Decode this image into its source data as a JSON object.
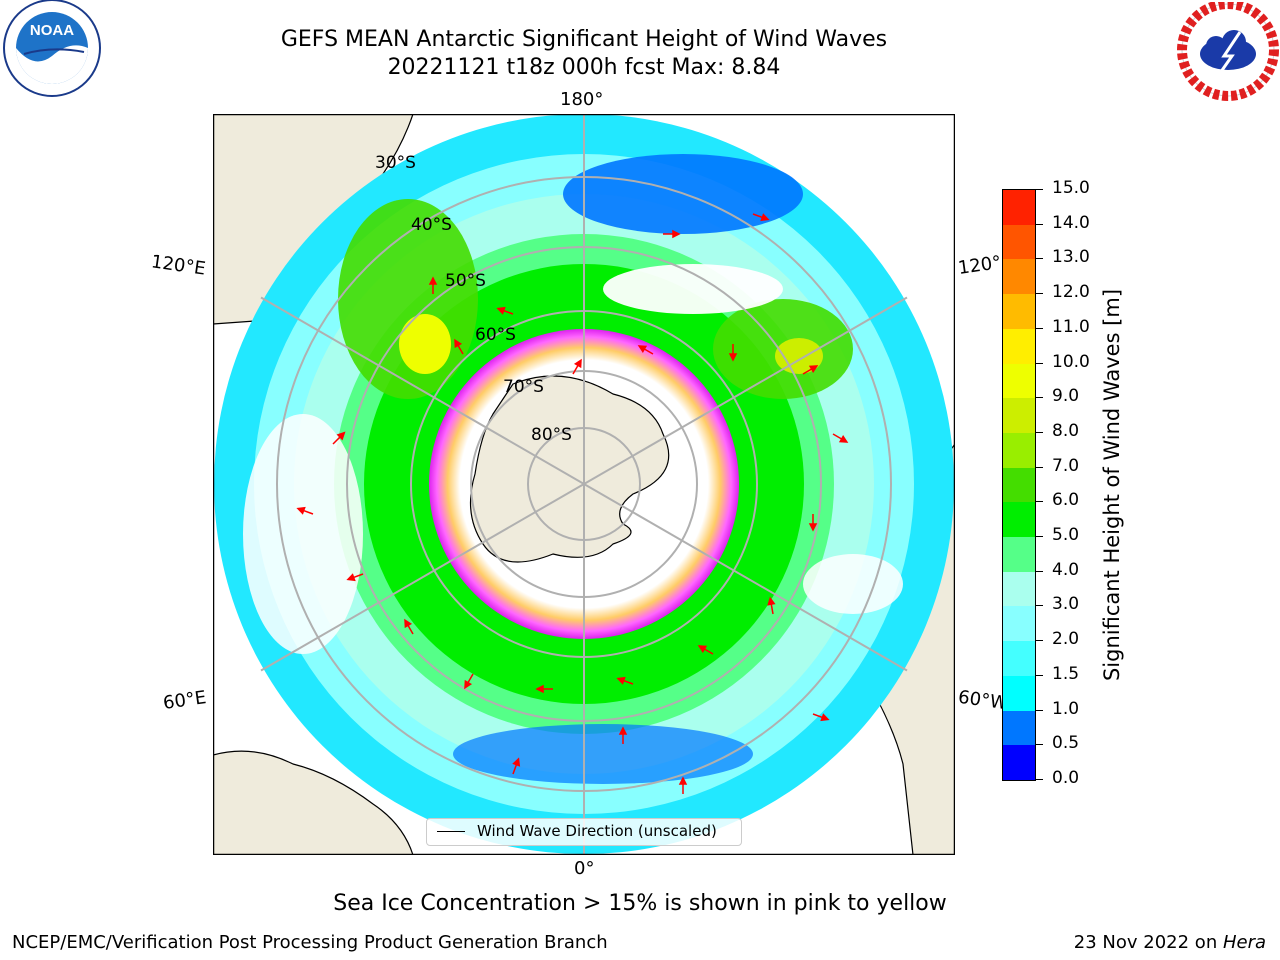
{
  "header": {
    "title": "GEFS MEAN Antarctic Significant Height of Wind Waves",
    "subtitle": "20221121 t18z 000h fcst   Max: 8.84"
  },
  "logos": {
    "noaa": {
      "text": "NOAA",
      "icon": "noaa-logo-icon"
    },
    "nws": {
      "icon": "national-weather-service-logo-icon"
    }
  },
  "map": {
    "projection": "south-polar-stereographic",
    "longitude_labels": [
      "180°",
      "120°E",
      "120°",
      "60°E",
      "60°W",
      "0°"
    ],
    "latitude_labels": [
      "30°S",
      "40°S",
      "50°S",
      "60°S",
      "70°S",
      "80°S"
    ],
    "legend_label": "Wind Wave Direction (unscaled)",
    "colors": {
      "land": "#efebdc",
      "sea_ice_low": "#ff44ff",
      "sea_ice_high": "#ffcc44",
      "arrows": "#ff0000"
    }
  },
  "colorbar": {
    "label": "Significant Height of Wind Waves [m]",
    "ticks": [
      "0.0",
      "0.5",
      "1.0",
      "1.5",
      "2.0",
      "3.0",
      "4.0",
      "5.0",
      "6.0",
      "7.0",
      "8.0",
      "9.0",
      "10.0",
      "11.0",
      "12.0",
      "13.0",
      "14.0",
      "15.0"
    ],
    "colors": [
      "#0000ff",
      "#0077ff",
      "#00ffff",
      "#44ffff",
      "#88ffff",
      "#aaffee",
      "#55ff88",
      "#00ee00",
      "#44dd00",
      "#99ee00",
      "#ccee00",
      "#eeff00",
      "#ffee00",
      "#ffbb00",
      "#ff8800",
      "#ff5500",
      "#ff2200",
      "#ff0000"
    ]
  },
  "notes": {
    "sea_ice": "Sea Ice Concentration > 15% is shown in pink to yellow"
  },
  "footer": {
    "left": "NCEP/EMC/Verification Post Processing Product Generation Branch",
    "right_date": "23 Nov 2022 on ",
    "right_host": "Hera"
  }
}
